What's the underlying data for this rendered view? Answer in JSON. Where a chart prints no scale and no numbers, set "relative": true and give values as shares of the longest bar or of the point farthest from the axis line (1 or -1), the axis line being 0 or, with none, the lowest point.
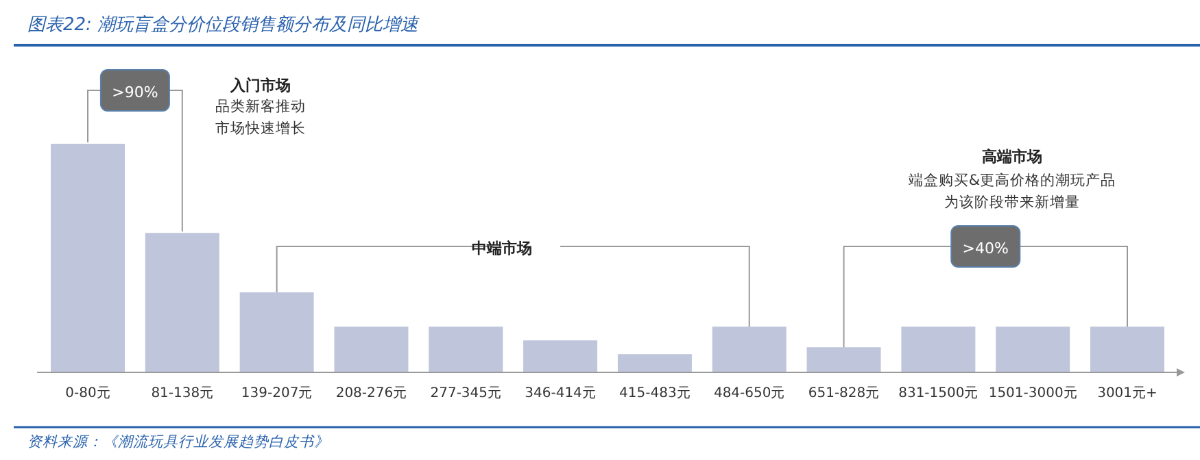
{
  "chart_data": {
    "type": "bar",
    "relative": true,
    "title": "图表22: 潮玩盲盒分价位段销售额分布及同比增速",
    "categories": [
      "0-80元",
      "81-138元",
      "139-207元",
      "208-276元",
      "277-345元",
      "346-414元",
      "415-483元",
      "484-650元",
      "651-828元",
      "831-1500元",
      "1501-3000元",
      "3001元+"
    ],
    "values": [
      1,
      0.61,
      0.35,
      0.2,
      0.2,
      0.14,
      0.08,
      0.2,
      0.11,
      0.2,
      0.2,
      0.2
    ],
    "color": "#bfc5db",
    "annotations": [
      "入门市场",
      "品类新客推动",
      "市场快速增长",
      ">90%",
      "中端市场",
      "高端市场",
      "端盒购买&更高价格的潮玩产品",
      "为该阶段带来新增量",
      ">40%",
      "资料来源：《潮流玩具行业发展趋势白皮书》"
    ]
  }
}
